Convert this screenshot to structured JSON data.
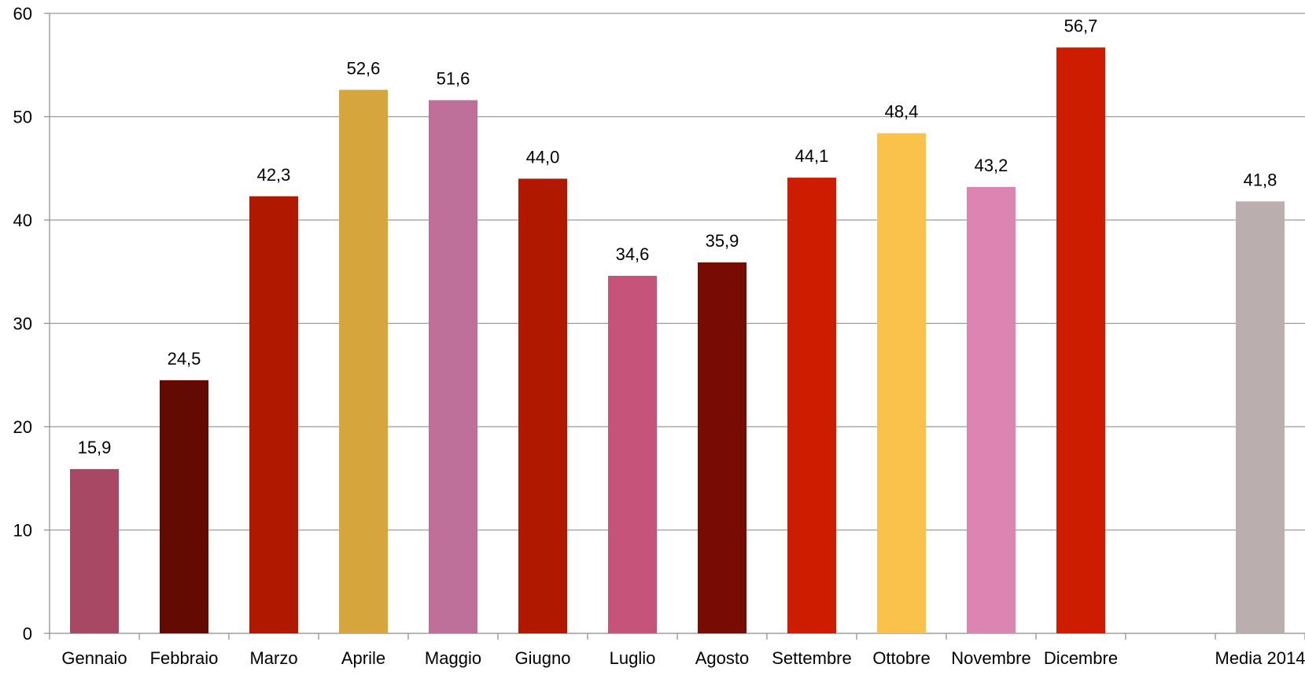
{
  "chart_data": {
    "type": "bar",
    "title": "",
    "xlabel": "",
    "ylabel": "",
    "ylim": [
      0,
      60
    ],
    "yticks": [
      0,
      10,
      20,
      30,
      40,
      50,
      60
    ],
    "grid": true,
    "legend": "none",
    "categories": [
      "Gennaio",
      "Febbraio",
      "Marzo",
      "Aprile",
      "Maggio",
      "Giugno",
      "Luglio",
      "Agosto",
      "Settembre",
      "Ottobre",
      "Novembre",
      "Dicembre",
      "",
      "Media 2014"
    ],
    "values": [
      15.9,
      24.5,
      42.3,
      52.6,
      51.6,
      44.0,
      34.6,
      35.9,
      44.1,
      48.4,
      43.2,
      56.7,
      null,
      41.8
    ],
    "value_labels": [
      "15,9",
      "24,5",
      "42,3",
      "52,6",
      "51,6",
      "44,0",
      "34,6",
      "35,9",
      "44,1",
      "48,4",
      "43,2",
      "56,7",
      "",
      "41,8"
    ],
    "colors": [
      "#A84865",
      "#630B03",
      "#B01800",
      "#D6A53C",
      "#BE709A",
      "#B01800",
      "#C6547A",
      "#780C03",
      "#CE1C00",
      "#FAC24A",
      "#DC84B2",
      "#CE1C00",
      null,
      "#BAAEAE"
    ]
  }
}
